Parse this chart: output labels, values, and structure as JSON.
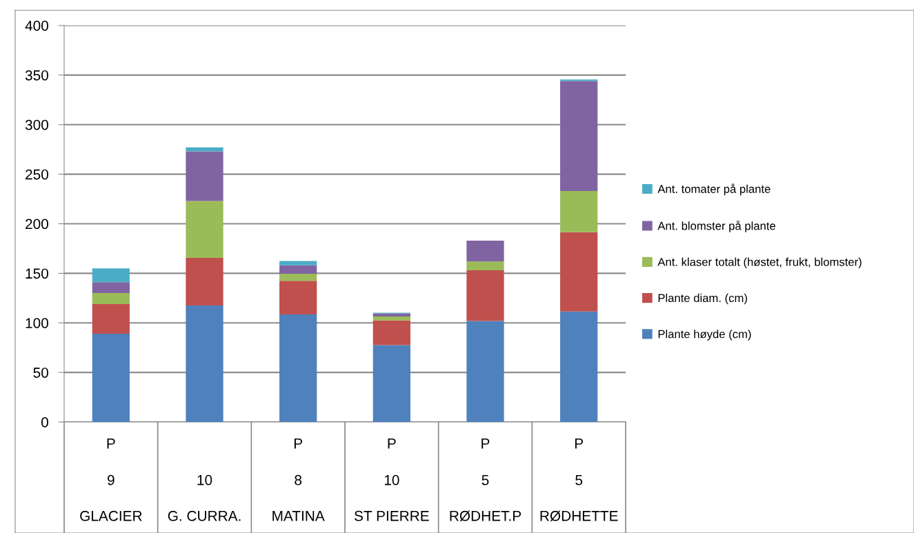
{
  "chart_data": {
    "type": "bar",
    "stacked": true,
    "categories": [
      "P\n9\nGLACIER",
      "\n10\nG. CURRA.",
      "P\n8\nMATINA",
      "P\n10\nST PIERRE",
      "P\n5\nRØDHET.P",
      "P\n5\nRØDHETTE"
    ],
    "series": [
      {
        "name": "Plante høyde (cm)",
        "color": "#4f81bd",
        "values": [
          89,
          117.5,
          108.5,
          77.5,
          102,
          111.5
        ]
      },
      {
        "name": "Plante diam. (cm)",
        "color": "#c0504d",
        "values": [
          30,
          48,
          34,
          25,
          51,
          80
        ]
      },
      {
        "name": "Ant. klaser totalt (høstet, frukt, blomster)",
        "color": "#9bbb59",
        "values": [
          11,
          57.5,
          7,
          4,
          9,
          41.5
        ]
      },
      {
        "name": "Ant. blomster på plante",
        "color": "#8064a2",
        "values": [
          11,
          50,
          8.5,
          3,
          21,
          111
        ]
      },
      {
        "name": "Ant. tomater på plante",
        "color": "#4bacc6",
        "values": [
          14,
          4,
          4.5,
          0.7,
          0,
          1.5
        ]
      }
    ],
    "ylim": [
      0,
      400
    ],
    "yticks": [
      0,
      50,
      100,
      150,
      200,
      250,
      300,
      350,
      400
    ],
    "grid": "y",
    "legend": "right"
  }
}
